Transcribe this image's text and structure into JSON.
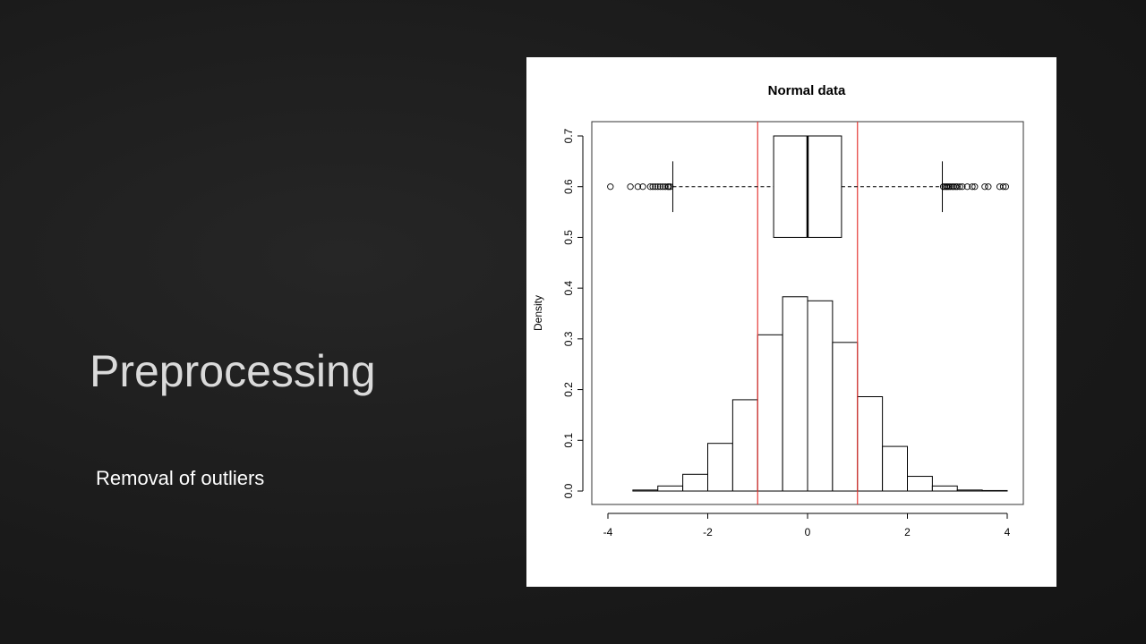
{
  "slide": {
    "title": "Preprocessing",
    "subtitle": "Removal of outliers"
  },
  "chart_data": {
    "type": "bar",
    "title": "Normal data",
    "xlabel": "",
    "ylabel": "Density",
    "xlim": [
      -4,
      4
    ],
    "ylim": [
      0,
      0.7
    ],
    "xticks": [
      "-4",
      "-2",
      "0",
      "2",
      "4"
    ],
    "yticks": [
      "0.0",
      "0.1",
      "0.2",
      "0.3",
      "0.4",
      "0.5",
      "0.6",
      "0.7"
    ],
    "grid": false,
    "histogram": {
      "bin_edges": [
        -4,
        -3.5,
        -3,
        -2.5,
        -2,
        -1.5,
        -1,
        -0.5,
        0,
        0.5,
        1,
        1.5,
        2,
        2.5,
        3,
        3.5,
        4
      ],
      "densities": [
        0.0,
        0.002,
        0.01,
        0.033,
        0.094,
        0.18,
        0.308,
        0.383,
        0.375,
        0.293,
        0.186,
        0.088,
        0.029,
        0.01,
        0.002,
        0.001
      ]
    },
    "boxplot": {
      "y_center": 0.6,
      "box_bottom": 0.5,
      "box_top": 0.7,
      "whisker_half_height": 0.05,
      "q1": -0.68,
      "median": 0.0,
      "q3": 0.68,
      "whisker_low": -2.7,
      "whisker_high": 2.7,
      "outliers_low": [
        -3.95,
        -3.55,
        -3.4,
        -3.3,
        -3.15,
        -3.1,
        -3.05,
        -3.0,
        -2.95,
        -2.9,
        -2.85,
        -2.8,
        -2.78,
        -2.75
      ],
      "outliers_high": [
        2.72,
        2.75,
        2.78,
        2.8,
        2.83,
        2.86,
        2.9,
        2.93,
        2.97,
        3.0,
        3.05,
        3.1,
        3.2,
        3.3,
        3.35,
        3.55,
        3.62,
        3.85,
        3.92,
        3.97
      ]
    },
    "reference_lines": {
      "color": "#e53935",
      "x": [
        -1,
        1
      ]
    }
  }
}
